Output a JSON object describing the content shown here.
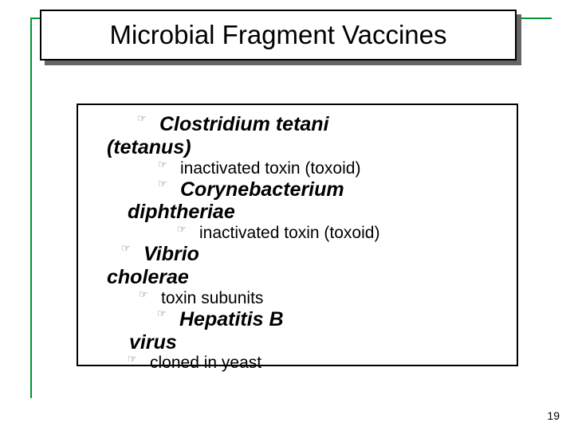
{
  "title": "Microbial Fragment Vaccines",
  "page_number": "19",
  "items": {
    "org1_name": "Clostridium  tetani",
    "org1_paren": "(tetanus)",
    "org1_detail": "inactivated toxin (toxoid)",
    "org2_name": "Corynebacterium",
    "org2_name2": "diphtheriae",
    "org2_detail": "inactivated toxin (toxoid)",
    "org3_name": "Vibrio",
    "org3_name2": "cholerae",
    "org3_detail": "toxin subunits",
    "org4_name": "Hepatitis B",
    "org4_name2": "virus",
    "org4_detail": "cloned in yeast"
  },
  "bullet_glyph": "☞"
}
